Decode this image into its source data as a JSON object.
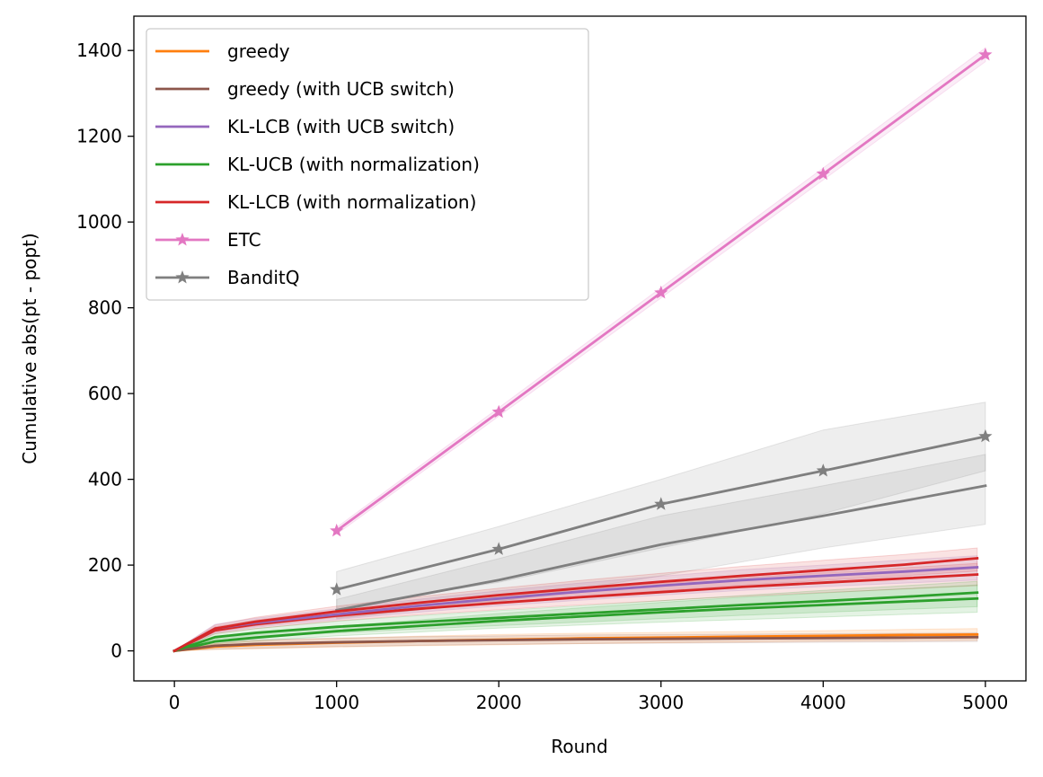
{
  "chart_data": {
    "type": "line",
    "title": "",
    "xlabel": "Round",
    "ylabel": "Cumulative abs(pt - popt)",
    "xlim": [
      -250,
      5250
    ],
    "ylim": [
      -70,
      1480
    ],
    "xticks": [
      0,
      1000,
      2000,
      3000,
      4000,
      5000
    ],
    "yticks": [
      0,
      200,
      400,
      600,
      800,
      1000,
      1200,
      1400
    ],
    "grid": false,
    "legend_position": "top-left",
    "series": [
      {
        "name": "greedy",
        "color": "#ff7f0e",
        "marker": "none",
        "x": [
          0,
          250,
          500,
          1000,
          1500,
          2000,
          2500,
          3000,
          3500,
          4000,
          4500,
          4950
        ],
        "y": [
          0,
          10,
          14,
          19,
          23,
          26,
          29,
          31,
          33,
          35,
          37,
          38
        ],
        "band": [
          [
            0,
            0
          ],
          [
            3,
            17
          ],
          [
            5,
            23
          ],
          [
            9,
            29
          ],
          [
            12,
            34
          ],
          [
            14,
            38
          ],
          [
            17,
            41
          ],
          [
            19,
            43
          ],
          [
            21,
            45
          ],
          [
            23,
            47
          ],
          [
            24,
            50
          ],
          [
            25,
            52
          ]
        ]
      },
      {
        "name": "greedy (with UCB switch)",
        "color": "#8c564b",
        "marker": "none",
        "x": [
          0,
          250,
          500,
          1000,
          1500,
          2000,
          2500,
          3000,
          3500,
          4000,
          4500,
          4950
        ],
        "y": [
          0,
          12,
          16,
          20,
          23,
          25,
          27,
          28,
          29,
          30,
          31,
          32
        ],
        "band": [
          [
            0,
            0
          ],
          [
            4,
            20
          ],
          [
            6,
            26
          ],
          [
            10,
            30
          ],
          [
            13,
            33
          ],
          [
            15,
            35
          ],
          [
            17,
            37
          ],
          [
            18,
            38
          ],
          [
            19,
            39
          ],
          [
            20,
            40
          ],
          [
            21,
            41
          ],
          [
            22,
            42
          ]
        ]
      },
      {
        "name": "KL-LCB (with UCB switch)",
        "color": "#9467bd",
        "marker": "none",
        "x": [
          0,
          250,
          500,
          1000,
          1500,
          2000,
          2500,
          3000,
          3500,
          4000,
          4500,
          4950
        ],
        "y": [
          0,
          52,
          65,
          85,
          105,
          122,
          138,
          152,
          165,
          175,
          185,
          195
        ],
        "band": [
          [
            0,
            0
          ],
          [
            42,
            62
          ],
          [
            55,
            76
          ],
          [
            73,
            98
          ],
          [
            90,
            120
          ],
          [
            105,
            140
          ],
          [
            118,
            158
          ],
          [
            130,
            174
          ],
          [
            141,
            189
          ],
          [
            150,
            200
          ],
          [
            158,
            212
          ],
          [
            165,
            222
          ]
        ]
      },
      {
        "name": "KL-UCB (with normalization)",
        "color": "#2ca02c",
        "marker": "none",
        "x": [
          0,
          250,
          500,
          1000,
          1500,
          2000,
          2500,
          3000,
          3500,
          4000,
          4500,
          4950
        ],
        "y": [
          0,
          32,
          42,
          56,
          67,
          77,
          87,
          97,
          107,
          116,
          126,
          136
        ],
        "band": [
          [
            0,
            0
          ],
          [
            24,
            40
          ],
          [
            32,
            52
          ],
          [
            42,
            69
          ],
          [
            51,
            82
          ],
          [
            59,
            94
          ],
          [
            67,
            105
          ],
          [
            75,
            117
          ],
          [
            83,
            129
          ],
          [
            90,
            141
          ],
          [
            97,
            152
          ],
          [
            103,
            162
          ]
        ]
      },
      {
        "name": "KL-LCB (with normalization)",
        "color": "#d62728",
        "marker": "none",
        "x": [
          0,
          250,
          500,
          1000,
          1500,
          2000,
          2500,
          3000,
          3500,
          4000,
          4500,
          4950
        ],
        "y": [
          0,
          52,
          68,
          92,
          112,
          130,
          146,
          161,
          175,
          188,
          201,
          216
        ],
        "band": [
          [
            0,
            0
          ],
          [
            44,
            60
          ],
          [
            58,
            78
          ],
          [
            78,
            104
          ],
          [
            96,
            126
          ],
          [
            112,
            146
          ],
          [
            127,
            164
          ],
          [
            140,
            181
          ],
          [
            153,
            197
          ],
          [
            164,
            211
          ],
          [
            175,
            225
          ],
          [
            186,
            240
          ]
        ]
      },
      {
        "name": "ETC",
        "color": "#e377c2",
        "marker": "star",
        "x": [
          1000,
          2000,
          3000,
          4000,
          5000
        ],
        "y": [
          280,
          557,
          835,
          1112,
          1390
        ],
        "band": [
          [
            272,
            288
          ],
          [
            547,
            567
          ],
          [
            823,
            847
          ],
          [
            1098,
            1126
          ],
          [
            1374,
            1406
          ]
        ]
      },
      {
        "name": "BanditQ",
        "color": "#7f7f7f",
        "marker": "star",
        "x": [
          1000,
          2000,
          3000,
          4000,
          5000
        ],
        "y": [
          143,
          237,
          342,
          420,
          500
        ],
        "band": [
          [
            100,
            185
          ],
          [
            160,
            290
          ],
          [
            240,
            400
          ],
          [
            320,
            515
          ],
          [
            420,
            580
          ]
        ]
      }
    ],
    "secondary_lines": [
      {
        "color": "#7f7f7f",
        "x": [
          1000,
          2000,
          3000,
          4000,
          5000
        ],
        "y": [
          95,
          165,
          248,
          315,
          385
        ],
        "band": [
          [
            75,
            120
          ],
          [
            115,
            215
          ],
          [
            175,
            315
          ],
          [
            240,
            385
          ],
          [
            295,
            458
          ]
        ]
      },
      {
        "color": "#d62728",
        "x": [
          0,
          250,
          500,
          1000,
          1500,
          2000,
          2500,
          3000,
          3500,
          4000,
          4500,
          4950
        ],
        "y": [
          0,
          48,
          62,
          82,
          98,
          112,
          125,
          137,
          149,
          159,
          169,
          178
        ],
        "band": [
          [
            0,
            0
          ],
          [
            40,
            56
          ],
          [
            52,
            72
          ],
          [
            70,
            94
          ],
          [
            84,
            112
          ],
          [
            96,
            128
          ],
          [
            107,
            143
          ],
          [
            117,
            157
          ],
          [
            127,
            171
          ],
          [
            136,
            182
          ],
          [
            144,
            194
          ],
          [
            152,
            204
          ]
        ]
      },
      {
        "color": "#2ca02c",
        "x": [
          0,
          250,
          500,
          1000,
          1500,
          2000,
          2500,
          3000,
          3500,
          4000,
          4500,
          4950
        ],
        "y": [
          0,
          22,
          31,
          46,
          58,
          70,
          80,
          90,
          99,
          107,
          115,
          122
        ],
        "band": [
          [
            0,
            0
          ],
          [
            16,
            28
          ],
          [
            23,
            39
          ],
          [
            35,
            57
          ],
          [
            44,
            72
          ],
          [
            53,
            87
          ],
          [
            60,
            100
          ],
          [
            67,
            113
          ],
          [
            73,
            125
          ],
          [
            79,
            135
          ],
          [
            85,
            145
          ],
          [
            90,
            154
          ]
        ]
      }
    ]
  }
}
